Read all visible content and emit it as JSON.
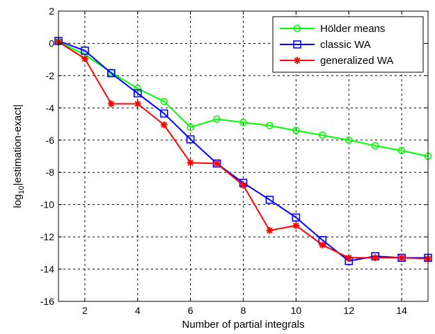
{
  "chart_data": {
    "type": "line",
    "title": "",
    "xlabel": "Number of partial integrals",
    "ylabel_main": "log",
    "ylabel_sub": "10",
    "ylabel_rest": "|estimation-exact|",
    "xlim": [
      1,
      15
    ],
    "ylim": [
      -16,
      2
    ],
    "x_ticks": [
      2,
      4,
      6,
      8,
      10,
      12,
      14
    ],
    "y_ticks": [
      2,
      0,
      -2,
      -4,
      -6,
      -8,
      -10,
      -12,
      -14,
      -16
    ],
    "grid": true,
    "legend_position": "top-right",
    "x": [
      1,
      2,
      3,
      4,
      5,
      6,
      7,
      8,
      9,
      10,
      11,
      12,
      13,
      14,
      15
    ],
    "series": [
      {
        "name": "Hölder means",
        "color": "#00ff00",
        "marker": "circle",
        "values": [
          0.1,
          -0.7,
          -1.8,
          -2.8,
          -3.6,
          -5.2,
          -4.7,
          -4.9,
          -5.1,
          -5.4,
          -5.7,
          -6.0,
          -6.35,
          -6.65,
          -7.0
        ]
      },
      {
        "name": "classic WA",
        "color": "#0000ff",
        "marker": "square",
        "values": [
          0.15,
          -0.45,
          -1.85,
          -3.1,
          -4.35,
          -5.95,
          -7.45,
          -8.65,
          -9.7,
          -10.8,
          -12.2,
          -13.5,
          -13.2,
          -13.3,
          -13.3
        ]
      },
      {
        "name": "generalized WA",
        "color": "#ff0000",
        "marker": "star",
        "values": [
          0.1,
          -0.95,
          -3.75,
          -3.75,
          -5.05,
          -7.4,
          -7.45,
          -8.8,
          -11.6,
          -11.3,
          -12.5,
          -13.3,
          -13.3,
          -13.3,
          -13.35
        ]
      }
    ]
  }
}
